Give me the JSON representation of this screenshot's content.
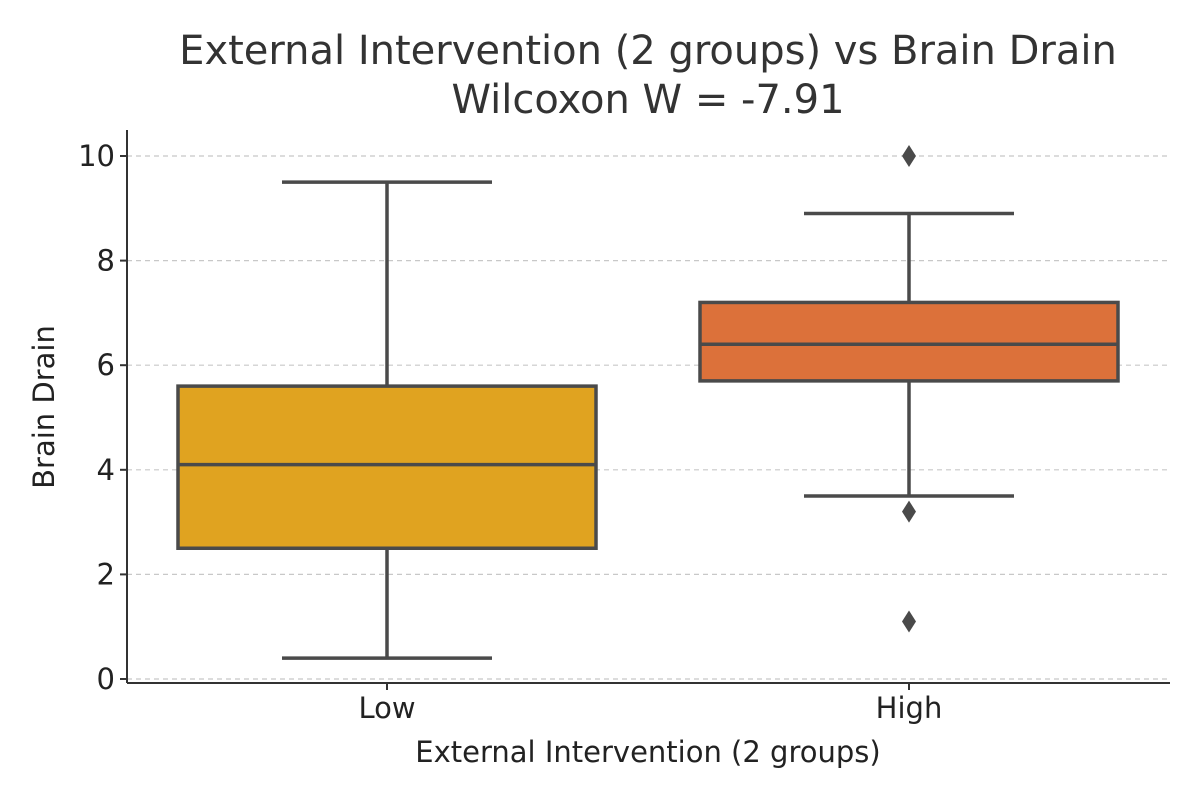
{
  "chart_data": {
    "type": "box",
    "title": "External Intervention (2 groups) vs Brain Drain",
    "subtitle": "Wilcoxon W = -7.91",
    "xlabel": "External Intervention (2 groups)",
    "ylabel": "Brain Drain",
    "ylim": [
      -0.1,
      10.5
    ],
    "yticks": [
      0,
      2,
      4,
      6,
      8,
      10
    ],
    "grid": true,
    "categories": [
      "Low",
      "High"
    ],
    "boxes": [
      {
        "category": "Low",
        "color": "#e0a320",
        "whisker_low": 0.4,
        "q1": 2.5,
        "median": 4.1,
        "q3": 5.6,
        "whisker_high": 9.5,
        "outliers": []
      },
      {
        "category": "High",
        "color": "#dc713a",
        "whisker_low": 3.5,
        "q1": 5.7,
        "median": 6.4,
        "q3": 7.2,
        "whisker_high": 8.9,
        "outliers": [
          10.0,
          3.2,
          1.1
        ]
      }
    ]
  }
}
